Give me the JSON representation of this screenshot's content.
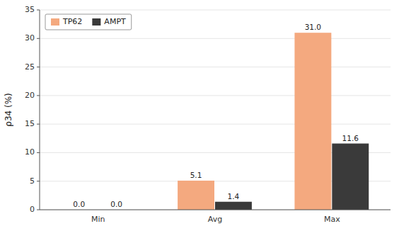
{
  "chart_data": {
    "type": "bar",
    "categories": [
      "Min",
      "Avg",
      "Max"
    ],
    "series": [
      {
        "name": "TP62",
        "color": "#F4A97F",
        "values": [
          0.0,
          5.1,
          31.0
        ],
        "value_labels": [
          "0.0",
          "5.1",
          "31.0"
        ]
      },
      {
        "name": "AMPT",
        "color": "#3A3A3A",
        "values": [
          0.0,
          1.4,
          11.6
        ],
        "value_labels": [
          "0.0",
          "1.4",
          "11.6"
        ]
      }
    ],
    "ylabel": "ρ34 (%)",
    "ylim": [
      0,
      35
    ],
    "yticks": [
      0,
      5,
      10,
      15,
      20,
      25,
      30,
      35
    ],
    "legend": "upper left",
    "data_labels": true
  }
}
